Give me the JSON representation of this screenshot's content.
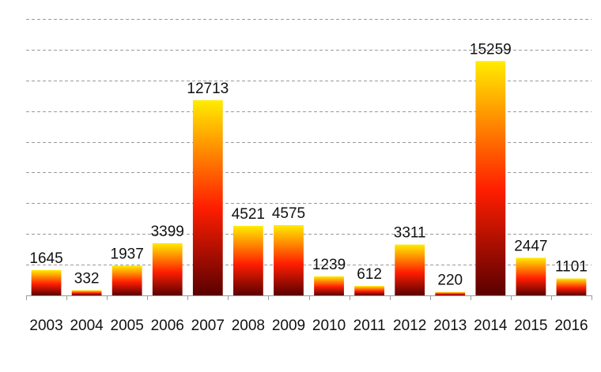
{
  "chart_data": {
    "type": "bar",
    "categories": [
      "2003",
      "2004",
      "2005",
      "2006",
      "2007",
      "2008",
      "2009",
      "2010",
      "2011",
      "2012",
      "2013",
      "2014",
      "2015",
      "2016"
    ],
    "values": [
      1645,
      332,
      1937,
      3399,
      12713,
      4521,
      4575,
      1239,
      612,
      3311,
      220,
      15259,
      2447,
      1101
    ],
    "title": "",
    "xlabel": "",
    "ylabel": "",
    "ylim": [
      0,
      18000
    ],
    "grid": true,
    "grid_style": "dashed",
    "y_tick_labels_shown": false,
    "legend": "none",
    "data_labels": true,
    "bar_gradient": {
      "top": "#ffec00",
      "middle": "#ff1e00",
      "bottom": "#5a0000"
    }
  }
}
